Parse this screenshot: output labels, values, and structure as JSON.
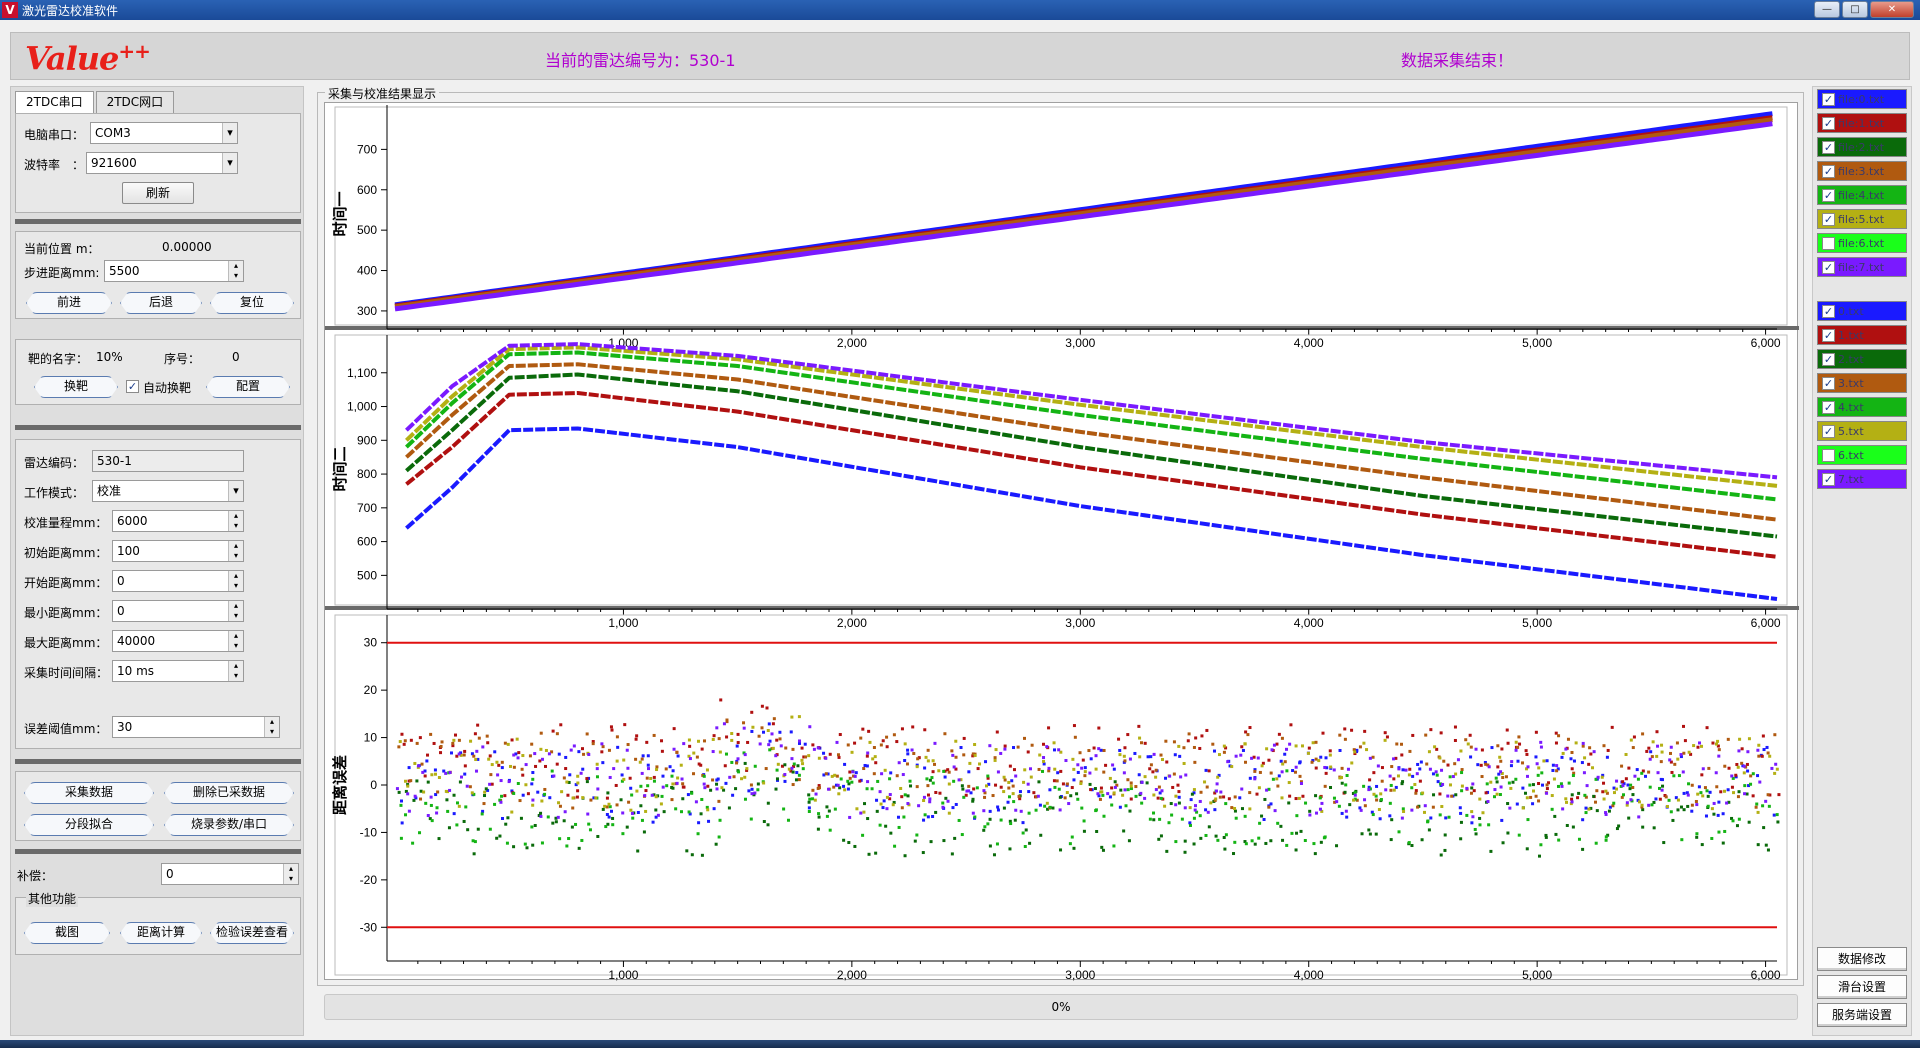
{
  "window": {
    "title": "激光雷达校准软件",
    "icon_letter": "V",
    "minimize": "—",
    "maximize": "□",
    "close": "✕"
  },
  "header": {
    "logo_text": "Value",
    "logo_sup": "++",
    "radar_label": "当前的雷达编号为：530-1",
    "status": "数据采集结束！"
  },
  "left": {
    "tabs": [
      "2TDC串口",
      "2TDC网口"
    ],
    "serial": {
      "port_label": "电脑串口：",
      "port_value": "COM3",
      "baud_label": "波特率　：",
      "baud_value": "921600",
      "refresh": "刷新"
    },
    "position": {
      "current_label": "当前位置 m：",
      "current_value": "0.00000",
      "step_label": "步进距离mm:",
      "step_value": "5500",
      "forward": "前进",
      "back": "后退",
      "reset": "复位"
    },
    "target": {
      "name_label": "靶的名字：",
      "name_value": "10%",
      "index_label": "序号：",
      "index_value": "0",
      "change": "换靶",
      "auto_label": "自动换靶",
      "auto_checked": true,
      "config": "配置"
    },
    "params": {
      "radar_code_label": "雷达编码：",
      "radar_code_value": "530-1",
      "mode_label": "工作模式：",
      "mode_value": "校准",
      "range_label": "校准量程mm：",
      "range_value": "6000",
      "init_label": "初始距离mm：",
      "init_value": "100",
      "start_label": "开始距离mm：",
      "start_value": "0",
      "min_label": "最小距离mm：",
      "min_value": "0",
      "max_label": "最大距离mm：",
      "max_value": "40000",
      "interval_label": "采集时间间隔：",
      "interval_value": "10  ms",
      "threshold_label": "误差阈值mm：",
      "threshold_value": "30"
    },
    "actions": {
      "collect": "采集数据",
      "delete": "删除已采数据",
      "fit": "分段拟合",
      "burn": "烧录参数/串口"
    },
    "comp": {
      "label": "补偿：",
      "value": "0"
    },
    "other": {
      "title": "其他功能",
      "screenshot": "截图",
      "distance": "距离计算",
      "check": "检验误差查看"
    }
  },
  "chart_area": {
    "title": "采集与校准结果显示",
    "progress": "0%"
  },
  "right": {
    "files": [
      {
        "label": "file:0.txt",
        "checked": true,
        "color": "#1a1aff"
      },
      {
        "label": "file:1.txt",
        "checked": true,
        "color": "#b01010"
      },
      {
        "label": "file:2.txt",
        "checked": true,
        "color": "#0a6a0a"
      },
      {
        "label": "file:3.txt",
        "checked": true,
        "color": "#b05a10"
      },
      {
        "label": "file:4.txt",
        "checked": true,
        "color": "#14b414"
      },
      {
        "label": "file:5.txt",
        "checked": true,
        "color": "#b4b014"
      },
      {
        "label": "file:6.txt",
        "checked": false,
        "color": "#1aff1a"
      },
      {
        "label": "file:7.txt",
        "checked": true,
        "color": "#7a1aff"
      }
    ],
    "series": [
      {
        "label": "0.txt",
        "checked": true,
        "color": "#1a1aff"
      },
      {
        "label": "1.txt",
        "checked": true,
        "color": "#b01010"
      },
      {
        "label": "2.txt",
        "checked": true,
        "color": "#0a6a0a"
      },
      {
        "label": "3.txt",
        "checked": true,
        "color": "#b05a10"
      },
      {
        "label": "4.txt",
        "checked": true,
        "color": "#14b414"
      },
      {
        "label": "5.txt",
        "checked": true,
        "color": "#b4b014"
      },
      {
        "label": "6.txt",
        "checked": false,
        "color": "#1aff1a"
      },
      {
        "label": "7.txt",
        "checked": true,
        "color": "#7a1aff"
      }
    ],
    "buttons": [
      "数据修改",
      "滑台设置",
      "服务端设置"
    ]
  },
  "chart_data": [
    {
      "type": "scatter",
      "title": "",
      "ylabel": "时间一",
      "xlim": [
        0,
        6050
      ],
      "ylim": [
        280,
        800
      ],
      "xticks": [
        "1,000",
        "2,000",
        "3,000",
        "4,000",
        "5,000",
        "6,000"
      ],
      "yticks": [
        "300",
        "400",
        "500",
        "600",
        "700"
      ],
      "series": [
        {
          "name": "0.txt",
          "color": "#1a1aff",
          "start": [
            0,
            315
          ],
          "end": [
            6050,
            790
          ]
        },
        {
          "name": "1.txt",
          "color": "#b01010",
          "start": [
            0,
            312
          ],
          "end": [
            6050,
            780
          ]
        },
        {
          "name": "3.txt",
          "color": "#b05a10",
          "start": [
            0,
            310
          ],
          "end": [
            6050,
            775
          ]
        },
        {
          "name": "7.txt",
          "color": "#7a1aff",
          "start": [
            0,
            305
          ],
          "end": [
            6050,
            765
          ]
        }
      ]
    },
    {
      "type": "scatter",
      "title": "",
      "ylabel": "时间二",
      "xlim": [
        0,
        6050
      ],
      "ylim": [
        430,
        1200
      ],
      "xticks": [
        "1,000",
        "2,000",
        "3,000",
        "4,000",
        "5,000",
        "6,000"
      ],
      "yticks": [
        "500",
        "600",
        "700",
        "800",
        "900",
        "1,000",
        "1,100"
      ],
      "series": [
        {
          "name": "0.txt",
          "color": "#1a1aff",
          "points": [
            [
              50,
              640
            ],
            [
              250,
              760
            ],
            [
              500,
              930
            ],
            [
              800,
              935
            ],
            [
              1500,
              880
            ],
            [
              3000,
              705
            ],
            [
              4500,
              560
            ],
            [
              6050,
              430
            ]
          ]
        },
        {
          "name": "1.txt",
          "color": "#b01010",
          "points": [
            [
              50,
              770
            ],
            [
              250,
              880
            ],
            [
              500,
              1035
            ],
            [
              800,
              1040
            ],
            [
              1500,
              985
            ],
            [
              3000,
              820
            ],
            [
              4500,
              680
            ],
            [
              6050,
              555
            ]
          ]
        },
        {
          "name": "2.txt",
          "color": "#0a6a0a",
          "points": [
            [
              50,
              810
            ],
            [
              250,
              930
            ],
            [
              500,
              1085
            ],
            [
              800,
              1095
            ],
            [
              1500,
              1045
            ],
            [
              3000,
              880
            ],
            [
              4500,
              735
            ],
            [
              6050,
              615
            ]
          ]
        },
        {
          "name": "3.txt",
          "color": "#b05a10",
          "points": [
            [
              50,
              850
            ],
            [
              250,
              975
            ],
            [
              500,
              1120
            ],
            [
              800,
              1125
            ],
            [
              1500,
              1080
            ],
            [
              3000,
              925
            ],
            [
              4500,
              790
            ],
            [
              6050,
              665
            ]
          ]
        },
        {
          "name": "4.txt",
          "color": "#14b414",
          "points": [
            [
              50,
              880
            ],
            [
              250,
              1010
            ],
            [
              500,
              1155
            ],
            [
              800,
              1160
            ],
            [
              1500,
              1120
            ],
            [
              3000,
              975
            ],
            [
              4500,
              845
            ],
            [
              6050,
              725
            ]
          ]
        },
        {
          "name": "5.txt",
          "color": "#b4b014",
          "points": [
            [
              50,
              900
            ],
            [
              250,
              1030
            ],
            [
              500,
              1170
            ],
            [
              800,
              1175
            ],
            [
              1500,
              1140
            ],
            [
              3000,
              1005
            ],
            [
              4500,
              880
            ],
            [
              6050,
              765
            ]
          ]
        },
        {
          "name": "7.txt",
          "color": "#7a1aff",
          "points": [
            [
              50,
              930
            ],
            [
              250,
              1060
            ],
            [
              500,
              1180
            ],
            [
              800,
              1185
            ],
            [
              1500,
              1150
            ],
            [
              3000,
              1020
            ],
            [
              4500,
              895
            ],
            [
              6050,
              790
            ]
          ]
        }
      ]
    },
    {
      "type": "scatter",
      "title": "",
      "ylabel": "距离误差",
      "xlim": [
        0,
        6050
      ],
      "ylim": [
        -35,
        35
      ],
      "xticks": [
        "1,000",
        "2,000",
        "3,000",
        "4,000",
        "5,000",
        "6,000"
      ],
      "yticks": [
        "30",
        "20",
        "10",
        "0",
        "-10",
        "-20",
        "-30"
      ],
      "threshold": 30,
      "series": [
        {
          "name": "0.txt",
          "color": "#1a1aff",
          "center": 0
        },
        {
          "name": "1.txt",
          "color": "#b01010",
          "center": 5
        },
        {
          "name": "2.txt",
          "color": "#0a6a0a",
          "center": -7
        },
        {
          "name": "3.txt",
          "color": "#b05a10",
          "center": 3
        },
        {
          "name": "4.txt",
          "color": "#14b414",
          "center": -5
        },
        {
          "name": "5.txt",
          "color": "#b4b014",
          "center": 2
        },
        {
          "name": "7.txt",
          "color": "#7a1aff",
          "center": 1
        }
      ]
    }
  ]
}
